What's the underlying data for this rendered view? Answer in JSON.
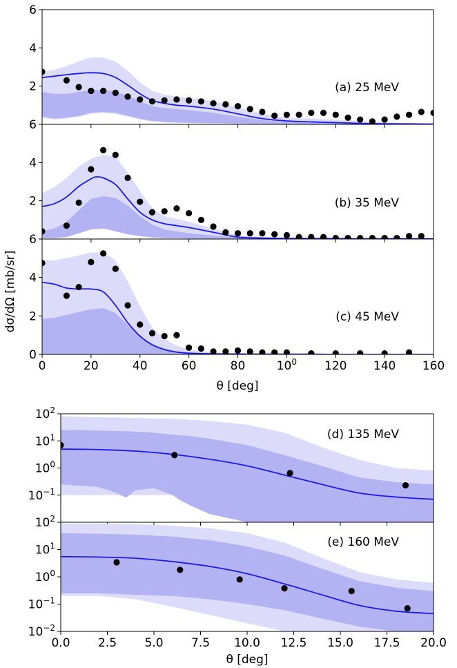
{
  "colors": {
    "band_outer": "#dcdcfa",
    "band_inner": "#b3b3f3",
    "curve": "#1a1aee",
    "points": "#000000"
  },
  "top_figure": {
    "ylabel": "dσ/dΩ  [mb/sr]",
    "xlabel": "θ [deg]"
  },
  "bottom_figure": {
    "xlabel": "θ [deg]"
  },
  "chart_data": [
    {
      "type": "line",
      "panel": "a",
      "annotation": "(a) 25 MeV",
      "xlim": [
        0,
        160
      ],
      "ylim": [
        0,
        6
      ],
      "yticks": [
        "2",
        "4",
        "6"
      ],
      "xticks": [],
      "curve": {
        "x": [
          0,
          5,
          10,
          15,
          20,
          25,
          30,
          35,
          40,
          45,
          50,
          55,
          60,
          70,
          80,
          90,
          100,
          110,
          120,
          130,
          140,
          150,
          160
        ],
        "y": [
          2.45,
          2.52,
          2.6,
          2.66,
          2.7,
          2.66,
          2.45,
          2.05,
          1.6,
          1.25,
          1.1,
          1.0,
          0.95,
          0.8,
          0.55,
          0.3,
          0.18,
          0.13,
          0.09,
          0.05,
          0.03,
          0.02,
          0.01
        ]
      },
      "band_outer": {
        "x": [
          0,
          5,
          10,
          15,
          20,
          25,
          30,
          35,
          40,
          45,
          50,
          55,
          60,
          70,
          80,
          90,
          100,
          110,
          120,
          130,
          140,
          150,
          160
        ],
        "upper": [
          2.75,
          2.85,
          3.05,
          3.3,
          3.5,
          3.5,
          3.3,
          2.8,
          2.2,
          1.75,
          1.55,
          1.45,
          1.4,
          1.2,
          0.9,
          0.55,
          0.35,
          0.3,
          0.25,
          0.18,
          0.1,
          0.08,
          0.05
        ],
        "lower": [
          0.35,
          0.25,
          0.3,
          0.4,
          0.55,
          0.6,
          0.55,
          0.4,
          0.25,
          0.15,
          0.1,
          0.08,
          0.07,
          0.05,
          0.04,
          0.03,
          0.02,
          0.01,
          0.01,
          0.0,
          0.0,
          0.0,
          0.0
        ]
      },
      "band_inner": {
        "x": [
          0,
          5,
          10,
          15,
          20,
          25,
          30,
          35,
          40,
          45,
          50,
          55,
          60,
          70,
          80,
          90,
          100,
          110,
          120,
          130,
          140,
          150,
          160
        ],
        "upper": [
          1.7,
          1.6,
          1.6,
          1.7,
          1.8,
          1.8,
          1.7,
          1.5,
          1.2,
          0.95,
          0.85,
          0.8,
          0.75,
          0.6,
          0.4,
          0.22,
          0.14,
          0.1,
          0.07,
          0.04,
          0.02,
          0.01,
          0.01
        ],
        "lower": [
          0.4,
          0.3,
          0.35,
          0.45,
          0.6,
          0.65,
          0.6,
          0.45,
          0.3,
          0.18,
          0.12,
          0.1,
          0.08,
          0.06,
          0.04,
          0.03,
          0.02,
          0.01,
          0.01,
          0.0,
          0.0,
          0.0,
          0.0
        ]
      },
      "points": {
        "x": [
          0,
          10,
          15,
          20,
          25,
          30,
          35,
          40,
          45,
          50,
          55,
          60,
          65,
          70,
          75,
          80,
          85,
          90,
          95,
          100,
          105,
          110,
          115,
          120,
          125,
          130,
          135,
          140,
          145,
          150,
          155,
          160
        ],
        "y": [
          2.75,
          2.3,
          1.95,
          1.75,
          1.75,
          1.65,
          1.45,
          1.3,
          1.2,
          1.25,
          1.3,
          1.25,
          1.2,
          1.1,
          1.05,
          0.95,
          0.8,
          0.65,
          0.45,
          0.5,
          0.5,
          0.6,
          0.6,
          0.5,
          0.35,
          0.25,
          0.15,
          0.25,
          0.4,
          0.5,
          0.65,
          0.6
        ]
      }
    },
    {
      "type": "line",
      "panel": "b",
      "annotation": "(b) 35 MeV",
      "xlim": [
        0,
        160
      ],
      "ylim": [
        0,
        6
      ],
      "yticks": [
        "2",
        "4",
        "6"
      ],
      "xticks": [],
      "curve": {
        "x": [
          0,
          5,
          10,
          15,
          20,
          22,
          25,
          30,
          35,
          40,
          45,
          50,
          55,
          60,
          70,
          80,
          90,
          100,
          110,
          120,
          130,
          140,
          150,
          160
        ],
        "y": [
          1.7,
          1.85,
          2.2,
          2.75,
          3.15,
          3.25,
          3.2,
          2.85,
          2.1,
          1.4,
          1.0,
          0.8,
          0.7,
          0.6,
          0.35,
          0.1,
          0.05,
          0.03,
          0.02,
          0.02,
          0.01,
          0.01,
          0.01,
          0.01
        ]
      },
      "band_outer": {
        "x": [
          0,
          5,
          10,
          15,
          20,
          25,
          30,
          35,
          40,
          45,
          50,
          55,
          60,
          70,
          80,
          90,
          100,
          110,
          120,
          130,
          140,
          150,
          160
        ],
        "upper": [
          2.4,
          2.7,
          3.2,
          3.8,
          4.2,
          4.4,
          4.3,
          3.5,
          2.5,
          1.6,
          1.2,
          1.05,
          0.9,
          0.55,
          0.2,
          0.1,
          0.05,
          0.04,
          0.03,
          0.02,
          0.02,
          0.02,
          0.02
        ],
        "lower": [
          0.05,
          0.05,
          0.1,
          0.3,
          0.5,
          0.55,
          0.4,
          0.25,
          0.15,
          0.08,
          0.05,
          0.04,
          0.03,
          0.02,
          0.01,
          0.0,
          0.0,
          0.0,
          0.0,
          0.0,
          0.0,
          0.0,
          0.0
        ]
      },
      "band_inner": {
        "x": [
          0,
          5,
          10,
          15,
          20,
          25,
          30,
          35,
          40,
          45,
          50,
          55,
          60,
          70,
          80,
          90,
          100,
          110,
          120,
          130,
          140,
          150,
          160
        ],
        "upper": [
          0.4,
          0.55,
          0.9,
          1.5,
          2.1,
          2.25,
          2.15,
          1.75,
          1.2,
          0.75,
          0.5,
          0.4,
          0.3,
          0.18,
          0.07,
          0.03,
          0.02,
          0.01,
          0.01,
          0.0,
          0.0,
          0.0,
          0.0
        ],
        "lower": [
          0.05,
          0.05,
          0.1,
          0.3,
          0.5,
          0.55,
          0.4,
          0.25,
          0.15,
          0.08,
          0.05,
          0.04,
          0.03,
          0.02,
          0.01,
          0.0,
          0.0,
          0.0,
          0.0,
          0.0,
          0.0,
          0.0,
          0.0
        ]
      },
      "points": {
        "x": [
          0,
          10,
          15,
          20,
          25,
          30,
          35,
          40,
          45,
          50,
          55,
          60,
          65,
          70,
          75,
          80,
          85,
          90,
          95,
          100,
          105,
          110,
          115,
          120,
          125,
          130,
          135,
          140,
          145,
          150,
          155
        ],
        "y": [
          0.4,
          0.7,
          1.9,
          3.65,
          4.65,
          4.4,
          3.2,
          1.95,
          1.4,
          1.45,
          1.6,
          1.35,
          1.0,
          0.65,
          0.35,
          0.3,
          0.3,
          0.3,
          0.25,
          0.2,
          0.1,
          0.1,
          0.1,
          0.05,
          0.05,
          0.05,
          0.05,
          0.05,
          0.05,
          0.15,
          0.15
        ]
      }
    },
    {
      "type": "line",
      "panel": "c",
      "annotation": "(c) 45 MeV",
      "xlim": [
        0,
        160
      ],
      "ylim": [
        0,
        6
      ],
      "yticks": [
        "0",
        "2",
        "4",
        "6"
      ],
      "xticks": [
        "0",
        "20",
        "40",
        "60",
        "80",
        "100",
        "120",
        "140",
        "160"
      ],
      "curve": {
        "x": [
          0,
          5,
          10,
          15,
          20,
          25,
          30,
          35,
          40,
          45,
          50,
          55,
          60,
          70,
          80,
          90,
          100,
          110,
          120,
          130,
          140,
          150,
          160
        ],
        "y": [
          3.75,
          3.65,
          3.45,
          3.4,
          3.4,
          3.25,
          2.55,
          1.65,
          0.95,
          0.5,
          0.25,
          0.12,
          0.06,
          0.03,
          0.02,
          0.01,
          0.01,
          0.01,
          0.0,
          0.0,
          0.0,
          0.0,
          0.0
        ]
      },
      "band_outer": {
        "x": [
          0,
          5,
          10,
          15,
          20,
          25,
          30,
          35,
          40,
          45,
          50,
          55,
          60,
          70,
          80,
          90,
          100,
          110,
          120,
          130,
          140,
          150,
          160
        ],
        "upper": [
          4.9,
          4.9,
          5.0,
          5.15,
          5.3,
          5.3,
          4.9,
          3.8,
          2.5,
          1.4,
          0.8,
          0.45,
          0.25,
          0.1,
          0.05,
          0.03,
          0.02,
          0.01,
          0.01,
          0.0,
          0.0,
          0.0,
          0.0
        ],
        "lower": [
          0.0,
          0.0,
          0.0,
          0.0,
          0.0,
          0.0,
          0.0,
          0.0,
          0.0,
          0.0,
          0.0,
          0.0,
          0.0,
          0.0,
          0.0,
          0.0,
          0.0,
          0.0,
          0.0,
          0.0,
          0.0,
          0.0,
          0.0
        ]
      },
      "band_inner": {
        "x": [
          0,
          5,
          10,
          15,
          20,
          25,
          30,
          35,
          40,
          45,
          50,
          55,
          60,
          70,
          80,
          90,
          100,
          110,
          120,
          130,
          140,
          150,
          160
        ],
        "upper": [
          1.85,
          1.9,
          2.05,
          2.2,
          2.35,
          2.4,
          2.15,
          1.55,
          0.95,
          0.55,
          0.3,
          0.15,
          0.08,
          0.04,
          0.02,
          0.01,
          0.01,
          0.0,
          0.0,
          0.0,
          0.0,
          0.0,
          0.0
        ],
        "lower": [
          0.0,
          0.0,
          0.0,
          0.0,
          0.0,
          0.0,
          0.0,
          0.0,
          0.0,
          0.0,
          0.0,
          0.0,
          0.0,
          0.0,
          0.0,
          0.0,
          0.0,
          0.0,
          0.0,
          0.0,
          0.0,
          0.0,
          0.0
        ]
      },
      "points": {
        "x": [
          0,
          10,
          15,
          20,
          25,
          30,
          35,
          40,
          45,
          50,
          55,
          60,
          65,
          70,
          75,
          80,
          85,
          90,
          95,
          100,
          110,
          120,
          130,
          140,
          150
        ],
        "y": [
          4.75,
          3.05,
          3.5,
          4.8,
          5.25,
          4.45,
          2.55,
          1.55,
          1.1,
          0.95,
          1.0,
          0.35,
          0.3,
          0.15,
          0.15,
          0.2,
          0.15,
          0.1,
          0.1,
          0.1,
          0.05,
          0.05,
          0.05,
          0.05,
          0.1
        ]
      }
    },
    {
      "type": "line",
      "panel": "d",
      "annotation": "(d) 135 MeV",
      "xlim": [
        0,
        20
      ],
      "ylim": [
        0.01,
        100
      ],
      "yscale": "log",
      "yticks": [
        "10−1",
        "100",
        "101",
        "102"
      ],
      "xticks": [],
      "curve": {
        "x": [
          0,
          2,
          4,
          6,
          8,
          10,
          12,
          14,
          16,
          18,
          20
        ],
        "y": [
          5.0,
          4.8,
          4.2,
          3.2,
          2.1,
          1.2,
          0.55,
          0.25,
          0.12,
          0.085,
          0.07
        ]
      },
      "band_outer": {
        "x": [
          0,
          2,
          4,
          6,
          8,
          10,
          12,
          14,
          16,
          18,
          20
        ],
        "upper": [
          80,
          75,
          70,
          65,
          55,
          40,
          20,
          6,
          2,
          1.0,
          0.8
        ],
        "lower": [
          0.1,
          0.1,
          0.1,
          0.1,
          0.1,
          0.1,
          0.1,
          0.1,
          0.1,
          0.1,
          0.1
        ]
      },
      "band_inner": {
        "x": [
          0,
          1,
          2,
          3,
          3.5,
          4,
          5,
          6,
          6.5,
          7,
          8,
          10,
          12,
          14,
          16,
          18,
          20
        ],
        "upper": [
          25,
          25,
          24,
          23,
          23,
          22,
          20,
          17,
          16,
          15,
          12,
          7,
          3,
          1.2,
          0.45,
          0.3,
          0.25
        ],
        "lower": [
          0.25,
          0.22,
          0.2,
          0.12,
          0.08,
          0.15,
          0.18,
          0.1,
          0.06,
          0.04,
          0.02,
          0.01,
          0.01,
          0.01,
          0.01,
          0.01,
          0.01
        ]
      },
      "points": {
        "x": [
          0.0,
          6.1,
          12.3,
          18.5
        ],
        "y": [
          7.0,
          3.0,
          0.65,
          0.23
        ]
      }
    },
    {
      "type": "line",
      "panel": "e",
      "annotation": "(e) 160 MeV",
      "xlim": [
        0,
        20
      ],
      "ylim": [
        0.01,
        100
      ],
      "yscale": "log",
      "yticks": [
        "10−2",
        "10−1",
        "100",
        "101",
        "102"
      ],
      "xticks": [
        "0.0",
        "2.5",
        "5.0",
        "7.5",
        "10.0",
        "12.5",
        "15.0",
        "17.5",
        "20.0"
      ],
      "curve": {
        "x": [
          0,
          2,
          4,
          6,
          8,
          10,
          12,
          14,
          16,
          18,
          20
        ],
        "y": [
          5.5,
          5.3,
          4.8,
          3.6,
          2.4,
          1.3,
          0.55,
          0.22,
          0.09,
          0.055,
          0.045
        ]
      },
      "band_outer": {
        "x": [
          0,
          2,
          4,
          6,
          8,
          10,
          12,
          14,
          16,
          18,
          20
        ],
        "upper": [
          90,
          90,
          85,
          75,
          60,
          40,
          18,
          5,
          1.5,
          0.8,
          0.6
        ],
        "lower": [
          0.2,
          0.2,
          0.15,
          0.08,
          0.04,
          0.02,
          0.01,
          0.01,
          0.01,
          0.01,
          0.01
        ]
      },
      "band_inner": {
        "x": [
          0,
          2,
          4,
          6,
          8,
          10,
          12,
          14,
          16,
          18,
          20
        ],
        "upper": [
          40,
          38,
          35,
          30,
          22,
          13,
          6,
          2,
          0.7,
          0.4,
          0.3
        ],
        "lower": [
          0.25,
          0.25,
          0.22,
          0.2,
          0.15,
          0.1,
          0.06,
          0.03,
          0.015,
          0.01,
          0.01
        ]
      },
      "points": {
        "x": [
          3.0,
          6.4,
          9.6,
          12.0,
          15.6,
          18.6
        ],
        "y": [
          3.4,
          1.8,
          0.8,
          0.38,
          0.3,
          0.07
        ]
      }
    }
  ]
}
